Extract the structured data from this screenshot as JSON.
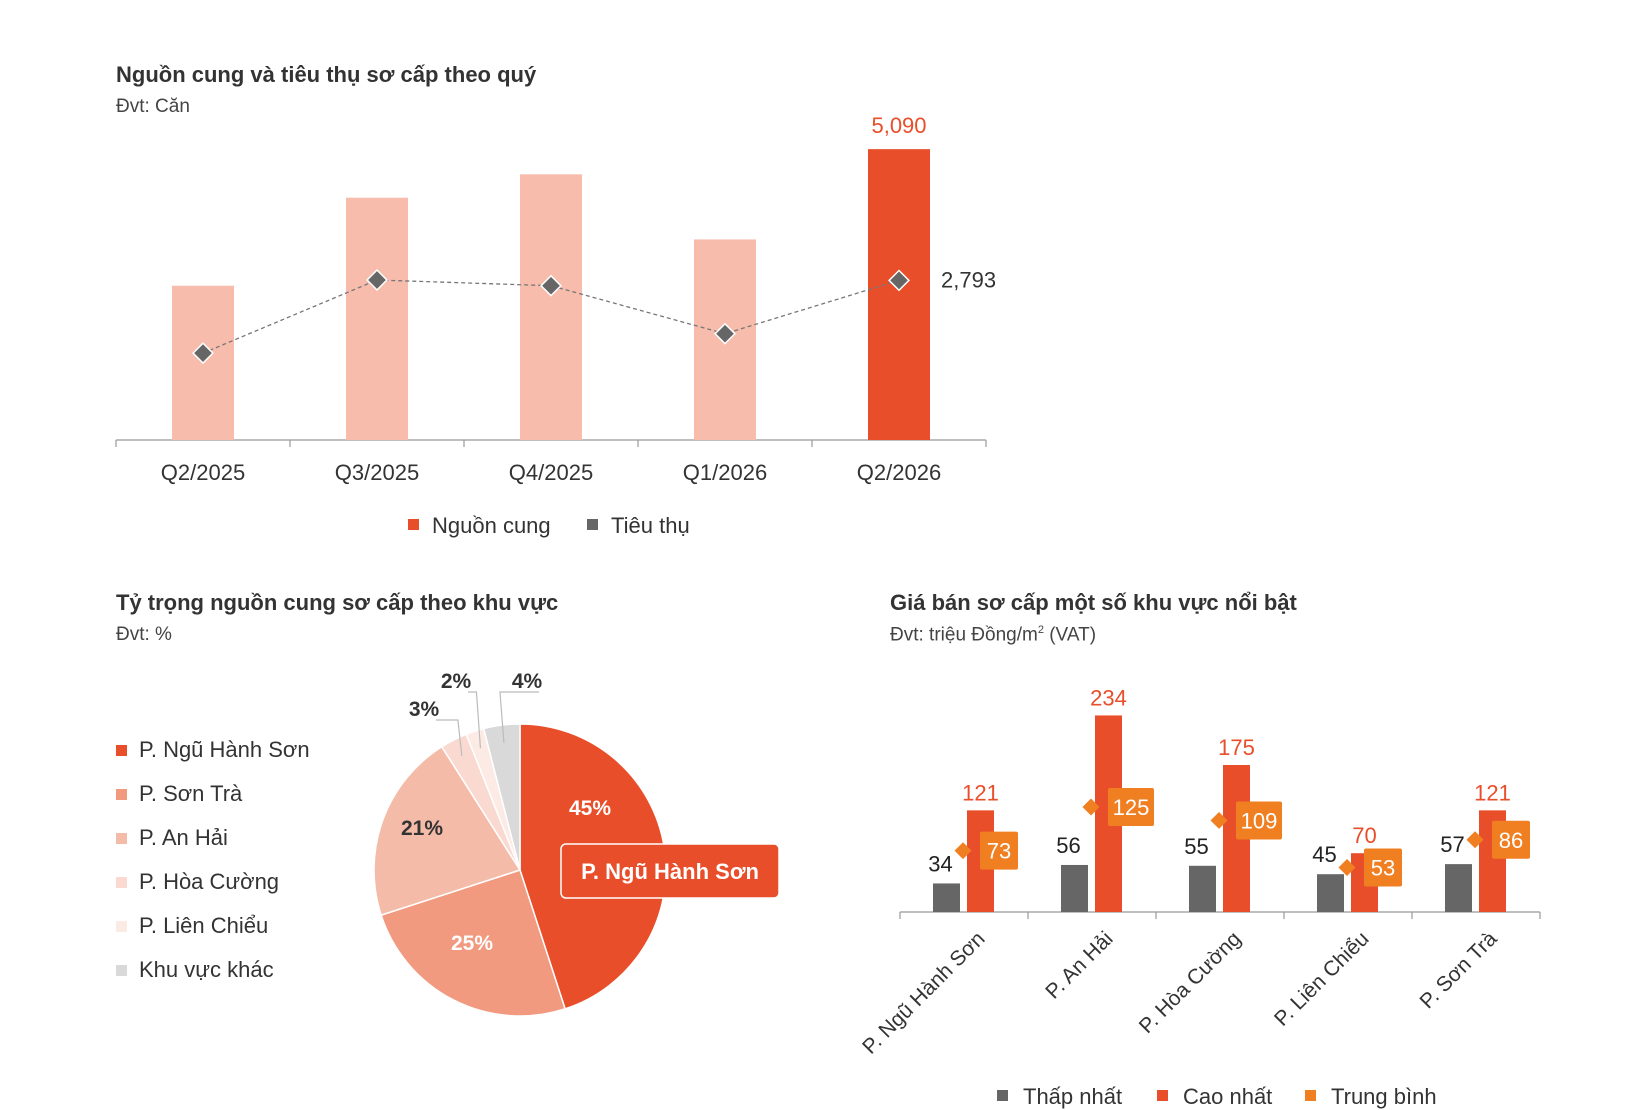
{
  "colors": {
    "supply": "#E84E2A",
    "supply_light": "#F8BCAC",
    "consumption": "#666666",
    "low": "#666666",
    "high": "#E84E2A",
    "avg": "#F07F22",
    "pie": [
      "#E84E2A",
      "#F19A80",
      "#F4BBA9",
      "#FADAD0",
      "#FCEAE5",
      "#D9D9D9"
    ]
  },
  "chart_data": [
    {
      "type": "bar",
      "title": "Nguồn cung và tiêu thụ sơ cấp theo quý",
      "unit": "Đvt: Căn",
      "categories": [
        "Q2/2025",
        "Q3/2025",
        "Q4/2025",
        "Q1/2026",
        "Q2/2026"
      ],
      "series": [
        {
          "name": "Nguồn cung",
          "chart": "bar",
          "values": [
            2700,
            4240,
            4650,
            3510,
            5090
          ]
        },
        {
          "name": "Tiêu thụ",
          "chart": "line",
          "values": [
            1520,
            2800,
            2700,
            1860,
            2793
          ]
        }
      ],
      "labels": {
        "supply_last": "5,090",
        "consumption_last": "2,793"
      },
      "ylim": [
        0,
        5600
      ],
      "grid": false,
      "legend": "bottom"
    },
    {
      "type": "pie",
      "title": "Tỷ trọng nguồn cung sơ cấp theo khu vực",
      "unit": "Đvt: %",
      "slices": [
        {
          "name": "P. Ngũ Hành Sơn",
          "value": 45,
          "label": "45%"
        },
        {
          "name": "P. Sơn Trà",
          "value": 25,
          "label": "25%"
        },
        {
          "name": "P. An Hải",
          "value": 21,
          "label": "21%"
        },
        {
          "name": "P. Hòa Cường",
          "value": 3,
          "label": "3%"
        },
        {
          "name": "P. Liên Chiểu",
          "value": 2,
          "label": "2%"
        },
        {
          "name": "Khu vực khác",
          "value": 4,
          "label": "4%"
        }
      ],
      "callout": "P. Ngũ Hành Sơn",
      "legend": "left"
    },
    {
      "type": "bar",
      "title": "Giá bán sơ cấp một số khu vực nổi bật",
      "unit_prefix": "Đvt: triệu Đồng/m",
      "unit_sup": "2",
      "unit_suffix": " (VAT)",
      "categories": [
        "P. Ngũ Hành Sơn",
        "P. An Hải",
        "P. Hòa Cường",
        "P. Liên Chiểu",
        "P. Sơn Trà"
      ],
      "series": [
        {
          "name": "Thấp nhất",
          "values": [
            34,
            56,
            55,
            45,
            57
          ]
        },
        {
          "name": "Cao nhất",
          "values": [
            121,
            234,
            175,
            70,
            121
          ]
        },
        {
          "name": "Trung bình",
          "values": [
            73,
            125,
            109,
            53,
            86
          ]
        }
      ],
      "ylim": [
        0,
        250
      ],
      "grid": false,
      "legend": "bottom"
    }
  ]
}
